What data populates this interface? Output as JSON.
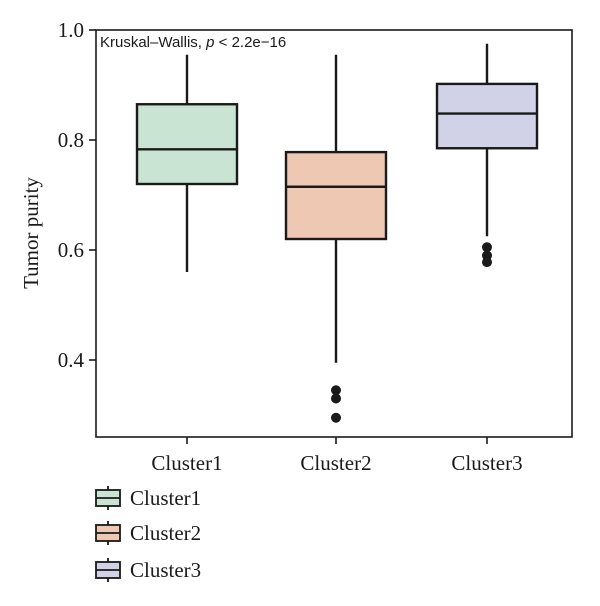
{
  "chart_data": {
    "type": "boxplot",
    "title": "",
    "ylabel": "Tumor purity",
    "xlabel": "",
    "ylim": [
      0.28,
      1.0
    ],
    "yticks": [
      0.4,
      0.6,
      0.8,
      1.0
    ],
    "annotation": {
      "prefix": "Kruskal–Wallis, ",
      "stat": "p",
      "suffix": " < 2.2e−16"
    },
    "legend": {
      "position": "bottom-left",
      "items": [
        "Cluster1",
        "Cluster2",
        "Cluster3"
      ]
    },
    "categories": [
      "Cluster1",
      "Cluster2",
      "Cluster3"
    ],
    "series": [
      {
        "name": "Cluster1",
        "color": "#c9e4d2",
        "whisker_low": 0.56,
        "q1": 0.72,
        "median": 0.783,
        "q3": 0.865,
        "whisker_high": 0.955,
        "outliers": []
      },
      {
        "name": "Cluster2",
        "color": "#efc8b4",
        "whisker_low": 0.395,
        "q1": 0.62,
        "median": 0.715,
        "q3": 0.778,
        "whisker_high": 0.955,
        "outliers": [
          0.345,
          0.33,
          0.295
        ]
      },
      {
        "name": "Cluster3",
        "color": "#d1d1e8",
        "whisker_low": 0.625,
        "q1": 0.785,
        "median": 0.848,
        "q3": 0.902,
        "whisker_high": 0.975,
        "outliers": [
          0.605,
          0.59,
          0.578
        ]
      }
    ]
  }
}
